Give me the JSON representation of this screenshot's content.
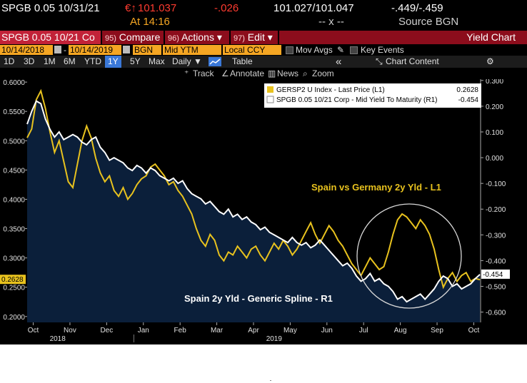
{
  "quote": {
    "ticker": "SPGB 0.05 10/31/21",
    "price_prefix": "€↑",
    "price": "101.037",
    "change": "-.026",
    "bid_ask": "101.027/101.047",
    "yields": "-.449/-.459",
    "time": "At 14:16",
    "size": "-- x --",
    "source": "Source BGN"
  },
  "function_bar": {
    "security": "SPGB 0.05 10/21 Co",
    "compare_num": "95)",
    "compare": "Compare",
    "actions_num": "96)",
    "actions": "Actions ▾",
    "edit_num": "97)",
    "edit": "Edit ▾",
    "title": "Yield Chart"
  },
  "params": {
    "start_date": "10/14/2018",
    "dash": "-",
    "end_date": "10/14/2019",
    "source": "BGN",
    "field": "Mid YTM",
    "currency": "Local CCY",
    "mov_avgs": "Mov Avgs",
    "key_events": "Key Events"
  },
  "ranges": {
    "items": [
      "1D",
      "3D",
      "1M",
      "6M",
      "YTD",
      "1Y",
      "5Y",
      "Max"
    ],
    "selected": "1Y",
    "period": "Daily ▼",
    "table": "Table",
    "collapse": "«",
    "chart_content": "Chart Content"
  },
  "tools": {
    "track": "Track",
    "annotate": "Annotate",
    "news": "News",
    "zoom": "Zoom"
  },
  "colors": {
    "plot_bg": "#0b1f3a",
    "yellow_series": "#e8c21e",
    "white_series": "#ffffff",
    "accent_red": "#8c0d1c",
    "amber_field": "#f5a623"
  },
  "chart_data": {
    "type": "line",
    "annotations": [
      "Spain vs Germany 2y Yld - L1",
      "Spain 2y Yld - Generic Spline - R1"
    ],
    "x_ticks": [
      "Oct",
      "Nov",
      "Dec",
      "Jan",
      "Feb",
      "Mar",
      "Apr",
      "May",
      "Jun",
      "Jul",
      "Aug",
      "Sep",
      "Oct"
    ],
    "x_years": [
      "2018",
      "2019"
    ],
    "left_axis": {
      "ticks": [
        "0.6000",
        "0.5500",
        "0.5000",
        "0.4500",
        "0.4000",
        "0.3500",
        "0.3000",
        "0.2500",
        "0.2000"
      ],
      "ylim": [
        0.19,
        0.605
      ],
      "last_value": "0.2628"
    },
    "right_axis": {
      "ticks": [
        "0.300",
        "0.200",
        "0.100",
        "0.000",
        "-0.100",
        "-0.200",
        "-0.300",
        "-0.400",
        "-0.500",
        "-0.600"
      ],
      "ylim": [
        -0.64,
        0.305
      ],
      "last_value": "-0.454"
    },
    "legend": [
      {
        "label": "GERSP2 U Index - Last Price (L1)",
        "value": "0.2628",
        "color": "#e8c21e"
      },
      {
        "label": "SPGB 0.05 10/21 Corp - Mid Yield To Maturity (R1)",
        "value": "-0.454",
        "color": "#ffffff"
      }
    ],
    "series": [
      {
        "name": "GERSP2 U Index - Last Price (L1)",
        "axis": "left",
        "points": [
          [
            0,
            0.505
          ],
          [
            3,
            0.52
          ],
          [
            6,
            0.57
          ],
          [
            9,
            0.585
          ],
          [
            12,
            0.555
          ],
          [
            15,
            0.515
          ],
          [
            18,
            0.48
          ],
          [
            21,
            0.5
          ],
          [
            24,
            0.465
          ],
          [
            27,
            0.43
          ],
          [
            30,
            0.42
          ],
          [
            33,
            0.46
          ],
          [
            36,
            0.5
          ],
          [
            39,
            0.525
          ],
          [
            42,
            0.505
          ],
          [
            45,
            0.47
          ],
          [
            48,
            0.445
          ],
          [
            51,
            0.43
          ],
          [
            54,
            0.44
          ],
          [
            57,
            0.415
          ],
          [
            60,
            0.405
          ],
          [
            63,
            0.42
          ],
          [
            66,
            0.4
          ],
          [
            69,
            0.41
          ],
          [
            72,
            0.425
          ],
          [
            75,
            0.435
          ],
          [
            78,
            0.44
          ],
          [
            81,
            0.455
          ],
          [
            84,
            0.46
          ],
          [
            87,
            0.45
          ],
          [
            90,
            0.44
          ],
          [
            93,
            0.425
          ],
          [
            96,
            0.43
          ],
          [
            99,
            0.415
          ],
          [
            102,
            0.405
          ],
          [
            105,
            0.39
          ],
          [
            108,
            0.375
          ],
          [
            111,
            0.35
          ],
          [
            114,
            0.33
          ],
          [
            117,
            0.32
          ],
          [
            120,
            0.34
          ],
          [
            123,
            0.33
          ],
          [
            126,
            0.305
          ],
          [
            129,
            0.295
          ],
          [
            132,
            0.31
          ],
          [
            135,
            0.305
          ],
          [
            138,
            0.32
          ],
          [
            141,
            0.31
          ],
          [
            144,
            0.3
          ],
          [
            147,
            0.315
          ],
          [
            150,
            0.32
          ],
          [
            153,
            0.305
          ],
          [
            156,
            0.295
          ],
          [
            159,
            0.31
          ],
          [
            162,
            0.325
          ],
          [
            165,
            0.315
          ],
          [
            168,
            0.33
          ],
          [
            171,
            0.32
          ],
          [
            174,
            0.305
          ],
          [
            177,
            0.315
          ],
          [
            180,
            0.33
          ],
          [
            183,
            0.345
          ],
          [
            186,
            0.36
          ],
          [
            189,
            0.34
          ],
          [
            192,
            0.325
          ],
          [
            195,
            0.34
          ],
          [
            198,
            0.355
          ],
          [
            201,
            0.345
          ],
          [
            204,
            0.33
          ],
          [
            207,
            0.32
          ],
          [
            210,
            0.305
          ],
          [
            213,
            0.29
          ],
          [
            216,
            0.28
          ],
          [
            219,
            0.27
          ],
          [
            222,
            0.285
          ],
          [
            225,
            0.3
          ],
          [
            228,
            0.29
          ],
          [
            231,
            0.28
          ],
          [
            234,
            0.285
          ],
          [
            237,
            0.31
          ],
          [
            240,
            0.34
          ],
          [
            243,
            0.365
          ],
          [
            246,
            0.375
          ],
          [
            249,
            0.37
          ],
          [
            252,
            0.36
          ],
          [
            255,
            0.35
          ],
          [
            258,
            0.365
          ],
          [
            261,
            0.355
          ],
          [
            264,
            0.34
          ],
          [
            267,
            0.315
          ],
          [
            270,
            0.28
          ],
          [
            273,
            0.25
          ],
          [
            276,
            0.265
          ],
          [
            279,
            0.275
          ],
          [
            282,
            0.26
          ],
          [
            285,
            0.27
          ],
          [
            288,
            0.275
          ],
          [
            291,
            0.26
          ],
          [
            294,
            0.265
          ],
          [
            297,
            0.2628
          ]
        ]
      },
      {
        "name": "SPGB 0.05 10/21 Corp - Mid Yield To Maturity (R1)",
        "axis": "right",
        "points": [
          [
            0,
            0.13
          ],
          [
            3,
            0.18
          ],
          [
            6,
            0.22
          ],
          [
            9,
            0.21
          ],
          [
            12,
            0.15
          ],
          [
            15,
            0.11
          ],
          [
            18,
            0.08
          ],
          [
            21,
            0.1
          ],
          [
            24,
            0.07
          ],
          [
            27,
            0.08
          ],
          [
            30,
            0.09
          ],
          [
            33,
            0.08
          ],
          [
            36,
            0.06
          ],
          [
            39,
            0.05
          ],
          [
            42,
            0.07
          ],
          [
            45,
            0.08
          ],
          [
            48,
            0.04
          ],
          [
            51,
            0.02
          ],
          [
            54,
            -0.01
          ],
          [
            57,
            0.0
          ],
          [
            60,
            -0.01
          ],
          [
            63,
            -0.02
          ],
          [
            66,
            -0.04
          ],
          [
            69,
            -0.05
          ],
          [
            72,
            -0.03
          ],
          [
            75,
            -0.04
          ],
          [
            78,
            -0.06
          ],
          [
            81,
            -0.04
          ],
          [
            84,
            -0.05
          ],
          [
            87,
            -0.07
          ],
          [
            90,
            -0.08
          ],
          [
            93,
            -0.09
          ],
          [
            96,
            -0.08
          ],
          [
            99,
            -0.1
          ],
          [
            102,
            -0.09
          ],
          [
            105,
            -0.12
          ],
          [
            108,
            -0.14
          ],
          [
            111,
            -0.15
          ],
          [
            114,
            -0.16
          ],
          [
            117,
            -0.18
          ],
          [
            120,
            -0.17
          ],
          [
            123,
            -0.19
          ],
          [
            126,
            -0.21
          ],
          [
            129,
            -0.22
          ],
          [
            132,
            -0.2
          ],
          [
            135,
            -0.23
          ],
          [
            138,
            -0.22
          ],
          [
            141,
            -0.24
          ],
          [
            144,
            -0.23
          ],
          [
            147,
            -0.25
          ],
          [
            150,
            -0.26
          ],
          [
            153,
            -0.28
          ],
          [
            156,
            -0.27
          ],
          [
            159,
            -0.29
          ],
          [
            162,
            -0.3
          ],
          [
            165,
            -0.31
          ],
          [
            168,
            -0.32
          ],
          [
            171,
            -0.33
          ],
          [
            174,
            -0.31
          ],
          [
            177,
            -0.33
          ],
          [
            180,
            -0.34
          ],
          [
            183,
            -0.33
          ],
          [
            186,
            -0.35
          ],
          [
            189,
            -0.34
          ],
          [
            192,
            -0.32
          ],
          [
            195,
            -0.34
          ],
          [
            198,
            -0.36
          ],
          [
            201,
            -0.38
          ],
          [
            204,
            -0.4
          ],
          [
            207,
            -0.42
          ],
          [
            210,
            -0.41
          ],
          [
            213,
            -0.43
          ],
          [
            216,
            -0.46
          ],
          [
            219,
            -0.48
          ],
          [
            222,
            -0.47
          ],
          [
            225,
            -0.45
          ],
          [
            228,
            -0.48
          ],
          [
            231,
            -0.47
          ],
          [
            234,
            -0.49
          ],
          [
            237,
            -0.5
          ],
          [
            240,
            -0.52
          ],
          [
            243,
            -0.55
          ],
          [
            246,
            -0.54
          ],
          [
            249,
            -0.56
          ],
          [
            252,
            -0.55
          ],
          [
            255,
            -0.54
          ],
          [
            258,
            -0.53
          ],
          [
            261,
            -0.55
          ],
          [
            264,
            -0.53
          ],
          [
            267,
            -0.51
          ],
          [
            270,
            -0.48
          ],
          [
            273,
            -0.46
          ],
          [
            276,
            -0.47
          ],
          [
            279,
            -0.5
          ],
          [
            282,
            -0.49
          ],
          [
            285,
            -0.51
          ],
          [
            288,
            -0.5
          ],
          [
            291,
            -0.49
          ],
          [
            294,
            -0.47
          ],
          [
            297,
            -0.454
          ]
        ]
      }
    ]
  }
}
